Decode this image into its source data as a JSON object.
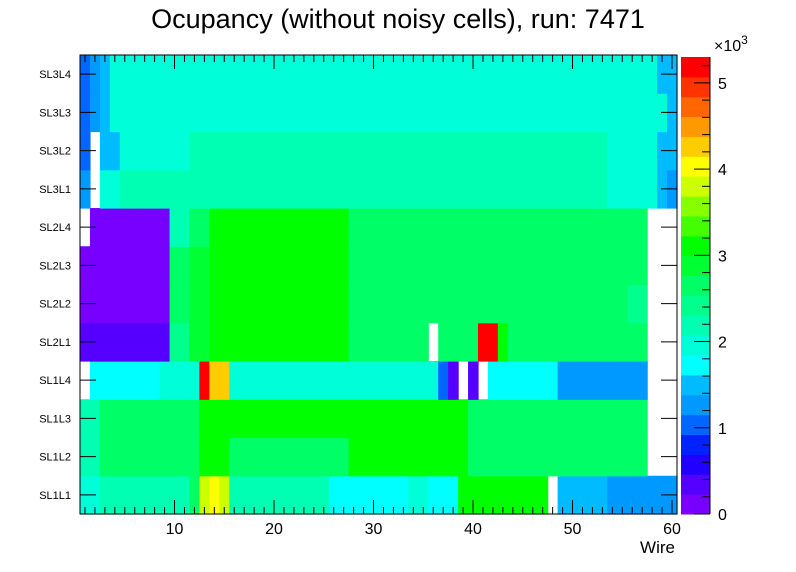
{
  "chart_data": {
    "type": "heatmap",
    "title": "Ocupancy (without noisy cells), run: 7471",
    "xlabel": "Wire",
    "ylabel": "",
    "x_range": [
      0.5,
      60.5
    ],
    "x_ticks": [
      10,
      20,
      30,
      40,
      50,
      60
    ],
    "rows": [
      "SL1L1",
      "SL1L2",
      "SL1L3",
      "SL1L4",
      "SL2L1",
      "SL2L2",
      "SL2L3",
      "SL2L4",
      "SL3L1",
      "SL3L2",
      "SL3L3",
      "SL3L4"
    ],
    "colorbar": {
      "min": 0,
      "max": 5300,
      "multiplier_label": "×10",
      "multiplier_exp": "3",
      "tick_values": [
        0,
        1000,
        2000,
        3000,
        4000,
        5000
      ],
      "tick_labels": [
        "0",
        "1",
        "2",
        "3",
        "4",
        "5"
      ],
      "colors": [
        "#7700ff",
        "#5500ff",
        "#2200ff",
        "#0022ff",
        "#0066ff",
        "#0099ff",
        "#00bbff",
        "#00ffff",
        "#00ffd9",
        "#00ffb3",
        "#00ff8c",
        "#00ff66",
        "#00ff33",
        "#00ff00",
        "#44ff00",
        "#88ff00",
        "#ccff00",
        "#ffff00",
        "#ffcc00",
        "#ff9900",
        "#ff6600",
        "#ff3300",
        "#ff0000"
      ]
    },
    "values": [
      [
        2050,
        2050,
        2200,
        2200,
        2200,
        2200,
        2200,
        2200,
        2200,
        2200,
        2200,
        2600,
        3700,
        4000,
        3700,
        2200,
        2200,
        2200,
        2200,
        2200,
        2200,
        2200,
        2200,
        2200,
        2200,
        1650,
        1650,
        1650,
        1650,
        1650,
        1650,
        1650,
        1650,
        2050,
        2050,
        1650,
        1650,
        1650,
        3000,
        3000,
        3000,
        3000,
        3000,
        3000,
        3000,
        3000,
        3000,
        0,
        1600,
        1600,
        1600,
        1600,
        1600,
        1200,
        1200,
        1200,
        1200,
        1200,
        1200,
        1200
      ],
      [
        2300,
        2300,
        2700,
        2700,
        2700,
        2700,
        2700,
        2700,
        2700,
        2700,
        2700,
        2700,
        3000,
        3000,
        3000,
        2700,
        2700,
        2700,
        2700,
        2700,
        2700,
        2700,
        2700,
        2700,
        2700,
        2700,
        2700,
        3000,
        3000,
        3000,
        3000,
        3000,
        3000,
        3000,
        3000,
        3000,
        3000,
        3000,
        3000,
        2700,
        2700,
        2700,
        2700,
        2700,
        2700,
        2700,
        2700,
        2700,
        2700,
        2700,
        2700,
        2700,
        2700,
        2700,
        2700,
        2700,
        2700,
        0,
        0,
        0
      ],
      [
        2300,
        2300,
        2700,
        2700,
        2700,
        2700,
        2700,
        2700,
        2700,
        2700,
        2700,
        2700,
        3000,
        3000,
        3000,
        3000,
        3000,
        3000,
        3000,
        3000,
        3000,
        3000,
        3000,
        3000,
        3000,
        3000,
        3000,
        3000,
        3000,
        3000,
        3000,
        3000,
        3000,
        3000,
        3000,
        3000,
        3000,
        3000,
        3000,
        2700,
        2700,
        2700,
        2700,
        2700,
        2700,
        2700,
        2700,
        2700,
        2700,
        2700,
        2700,
        2700,
        2700,
        2700,
        2700,
        2700,
        2700,
        0,
        0,
        0
      ],
      [
        0,
        1800,
        1800,
        1800,
        1800,
        1800,
        1800,
        1800,
        2050,
        2050,
        2050,
        2050,
        5100,
        4200,
        4200,
        2050,
        2050,
        2050,
        2050,
        2050,
        2050,
        2050,
        2050,
        2050,
        2050,
        2050,
        2050,
        2050,
        2050,
        2050,
        2050,
        2050,
        2050,
        2050,
        2050,
        2050,
        1000,
        300,
        0,
        300,
        0,
        1800,
        1800,
        1800,
        1800,
        1800,
        1800,
        1800,
        1300,
        1300,
        1300,
        1300,
        1300,
        1300,
        1300,
        1300,
        1300,
        0,
        0,
        0
      ],
      [
        250,
        250,
        250,
        250,
        250,
        250,
        250,
        250,
        250,
        2400,
        2400,
        2800,
        2800,
        3200,
        3200,
        3200,
        3200,
        3200,
        3200,
        3200,
        3200,
        3200,
        3200,
        3200,
        3200,
        3200,
        3200,
        2700,
        2700,
        2700,
        2700,
        2700,
        2700,
        2700,
        2700,
        0,
        2700,
        2700,
        2700,
        2700,
        5300,
        5300,
        3000,
        2700,
        2700,
        2700,
        2700,
        2700,
        2700,
        2700,
        2700,
        2700,
        2700,
        2700,
        2700,
        2700,
        2700,
        0,
        0,
        0
      ],
      [
        200,
        200,
        200,
        200,
        200,
        200,
        200,
        200,
        200,
        2600,
        2600,
        2900,
        2900,
        3200,
        3200,
        3200,
        3200,
        3200,
        3200,
        3200,
        3200,
        3200,
        3200,
        3200,
        3200,
        3200,
        3200,
        2700,
        2700,
        2700,
        2700,
        2700,
        2700,
        2700,
        2700,
        2700,
        2700,
        2700,
        2700,
        2700,
        2700,
        2700,
        2700,
        2700,
        2700,
        2700,
        2700,
        2700,
        2700,
        2700,
        2700,
        2700,
        2700,
        2700,
        2700,
        2400,
        2400,
        0,
        0,
        0
      ],
      [
        200,
        200,
        200,
        200,
        200,
        200,
        200,
        200,
        200,
        2600,
        2600,
        2900,
        2900,
        3100,
        3100,
        3100,
        3100,
        3100,
        3100,
        3100,
        3100,
        3100,
        3100,
        3100,
        3100,
        3100,
        3100,
        2700,
        2700,
        2700,
        2700,
        2700,
        2700,
        2700,
        2700,
        2700,
        2700,
        2700,
        2700,
        2700,
        2700,
        2700,
        2700,
        2700,
        2700,
        2700,
        2700,
        2700,
        2700,
        2700,
        2700,
        2700,
        2700,
        2700,
        2700,
        2700,
        2700,
        0,
        0,
        0
      ],
      [
        0,
        200,
        200,
        200,
        200,
        200,
        200,
        200,
        200,
        2300,
        2300,
        2700,
        2700,
        3100,
        3100,
        3100,
        3100,
        3100,
        3100,
        3100,
        3100,
        3100,
        3100,
        3100,
        3100,
        3100,
        3100,
        2700,
        2700,
        2700,
        2700,
        2700,
        2700,
        2700,
        2700,
        2700,
        2700,
        2700,
        2700,
        2700,
        2700,
        2700,
        2700,
        2700,
        2700,
        2700,
        2700,
        2700,
        2700,
        2700,
        2700,
        2700,
        2700,
        2700,
        2700,
        2700,
        2700,
        0,
        0,
        0
      ],
      [
        1200,
        0,
        2050,
        2050,
        2300,
        2300,
        2300,
        2300,
        2300,
        2300,
        2300,
        2300,
        2300,
        2300,
        2300,
        2300,
        2300,
        2300,
        2300,
        2300,
        2300,
        2300,
        2300,
        2300,
        2300,
        2300,
        2300,
        2300,
        2300,
        2300,
        2300,
        2300,
        2300,
        2300,
        2300,
        2300,
        2300,
        2300,
        2300,
        2300,
        2300,
        2300,
        2300,
        2300,
        2300,
        2300,
        2300,
        2300,
        2300,
        2300,
        2300,
        2300,
        2300,
        2050,
        2050,
        2050,
        2050,
        2050,
        1400,
        1200
      ],
      [
        1000,
        0,
        1600,
        1600,
        2050,
        2050,
        2050,
        2050,
        2050,
        2050,
        2050,
        2300,
        2300,
        2300,
        2300,
        2300,
        2300,
        2300,
        2300,
        2300,
        2300,
        2300,
        2300,
        2300,
        2300,
        2300,
        2300,
        2300,
        2300,
        2300,
        2300,
        2300,
        2300,
        2300,
        2300,
        2300,
        2300,
        2300,
        2300,
        2300,
        2300,
        2300,
        2300,
        2300,
        2300,
        2300,
        2300,
        2300,
        2300,
        2300,
        2300,
        2300,
        2300,
        2050,
        2050,
        2050,
        2050,
        2050,
        1400,
        1400
      ],
      [
        1000,
        1300,
        1600,
        2050,
        2050,
        2050,
        2050,
        2050,
        2050,
        2050,
        2050,
        2050,
        2050,
        2050,
        2050,
        2050,
        2050,
        2050,
        2050,
        2050,
        2050,
        2050,
        2050,
        2050,
        2050,
        2050,
        2050,
        2050,
        2050,
        2050,
        2050,
        2050,
        2050,
        2050,
        2050,
        2050,
        2050,
        2050,
        2050,
        2050,
        2050,
        2050,
        2050,
        2050,
        2050,
        2050,
        2050,
        2050,
        2050,
        2050,
        2050,
        2050,
        2050,
        2050,
        2050,
        2050,
        2050,
        2050,
        2050,
        1400
      ],
      [
        1000,
        1300,
        1600,
        2050,
        2050,
        2050,
        2050,
        2050,
        2050,
        2050,
        2050,
        2050,
        2050,
        2050,
        2050,
        2050,
        2050,
        2050,
        2050,
        2050,
        2050,
        2050,
        2050,
        2050,
        2050,
        2050,
        2050,
        2050,
        2050,
        2050,
        2050,
        2050,
        2050,
        2050,
        2050,
        2050,
        2050,
        2050,
        2050,
        2050,
        2050,
        2050,
        2050,
        2050,
        2050,
        2050,
        2050,
        2050,
        2050,
        2050,
        2050,
        2050,
        2050,
        2050,
        2050,
        2050,
        2050,
        2050,
        1400,
        1400
      ]
    ]
  }
}
